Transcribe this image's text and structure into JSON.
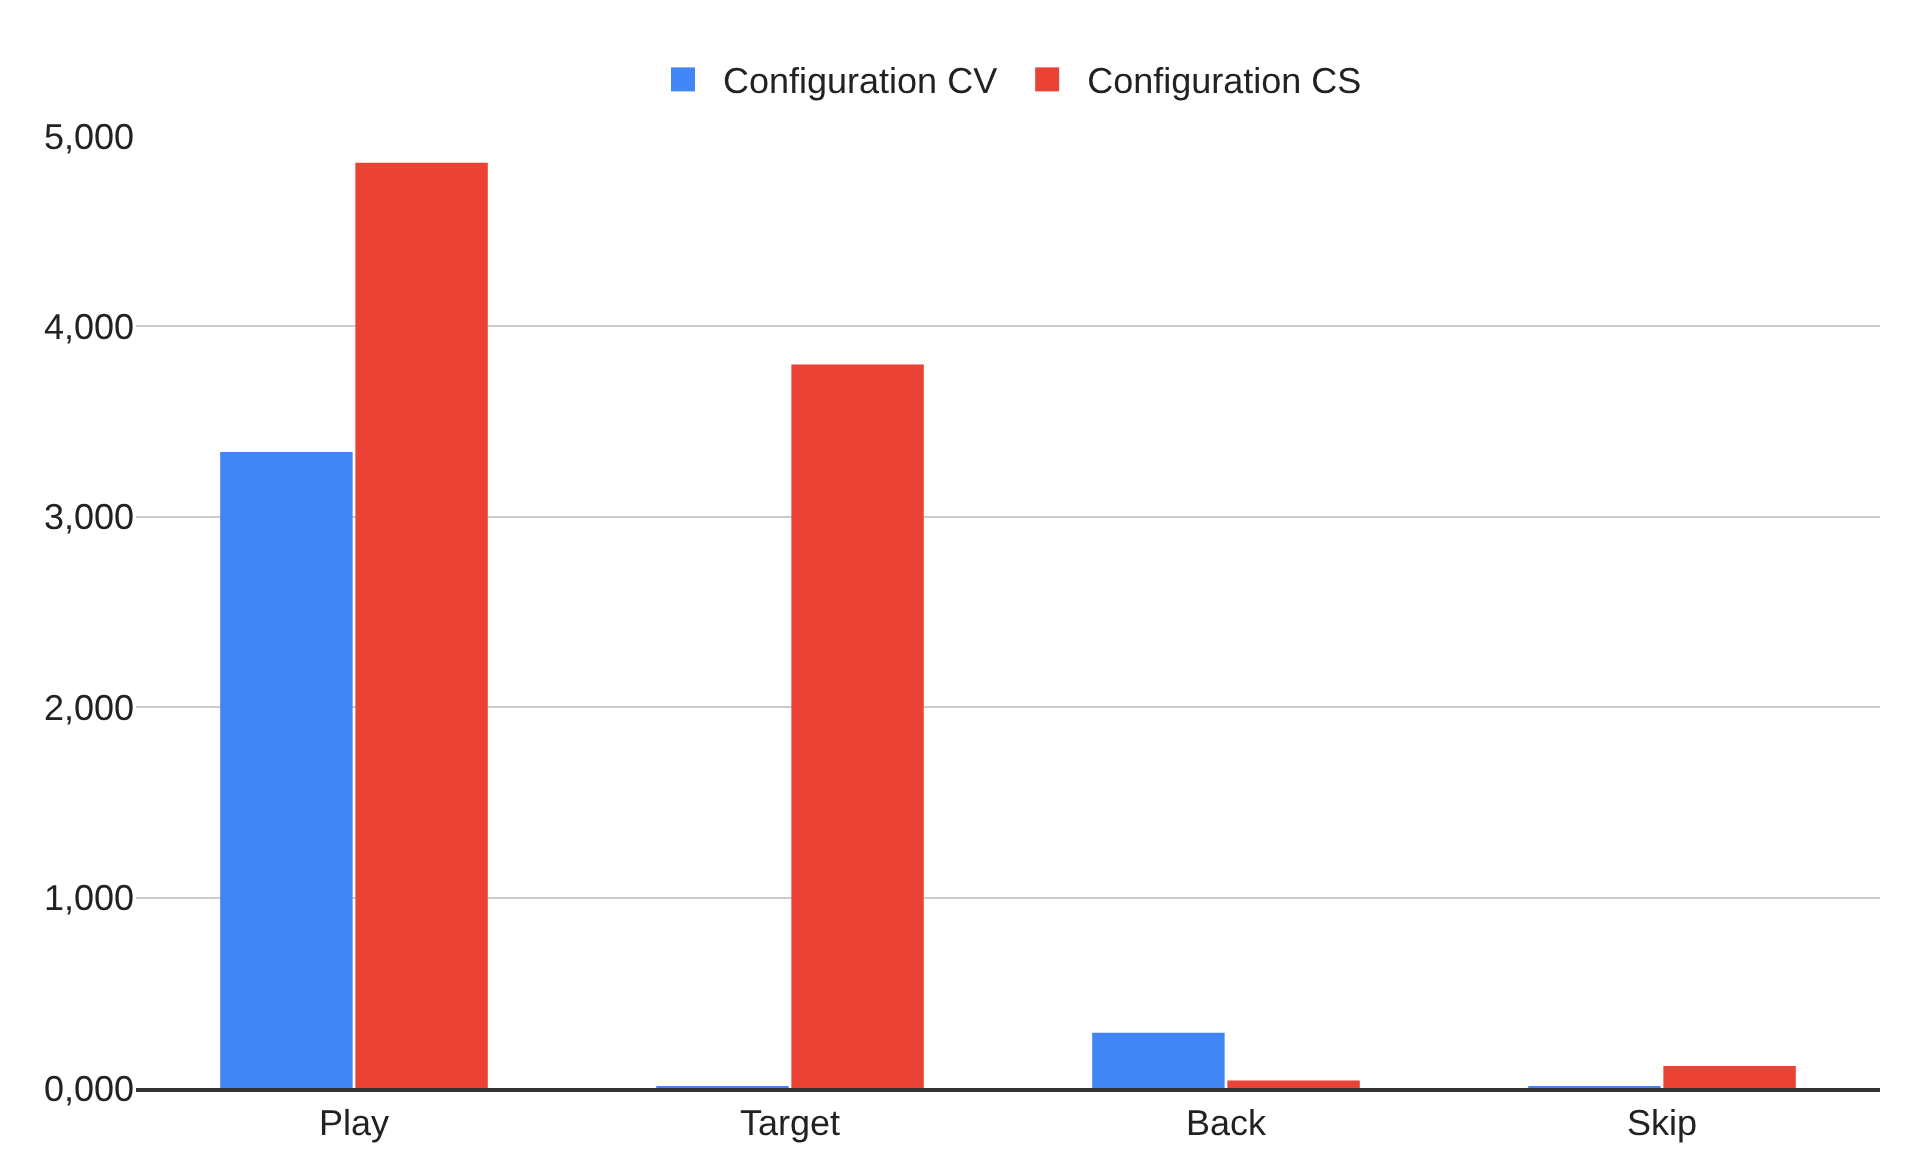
{
  "chart_data": {
    "type": "bar",
    "categories": [
      "Play",
      "Target",
      "Back",
      "Skip"
    ],
    "series": [
      {
        "name": "Configuration CV",
        "color": "#4285f4",
        "values": [
          3340,
          10,
          290,
          10
        ]
      },
      {
        "name": "Configuration CS",
        "color": "#ea4335",
        "values": [
          4860,
          3800,
          40,
          115
        ]
      }
    ],
    "ylim": [
      0,
      5000
    ],
    "yticks": [
      {
        "value": 0,
        "label": "0,000"
      },
      {
        "value": 1000,
        "label": "1,000"
      },
      {
        "value": 2000,
        "label": "2,000"
      },
      {
        "value": 3000,
        "label": "3,000"
      },
      {
        "value": 4000,
        "label": "4,000"
      },
      {
        "value": 5000,
        "label": "5,000"
      }
    ],
    "grid": "y",
    "legend": "top"
  }
}
